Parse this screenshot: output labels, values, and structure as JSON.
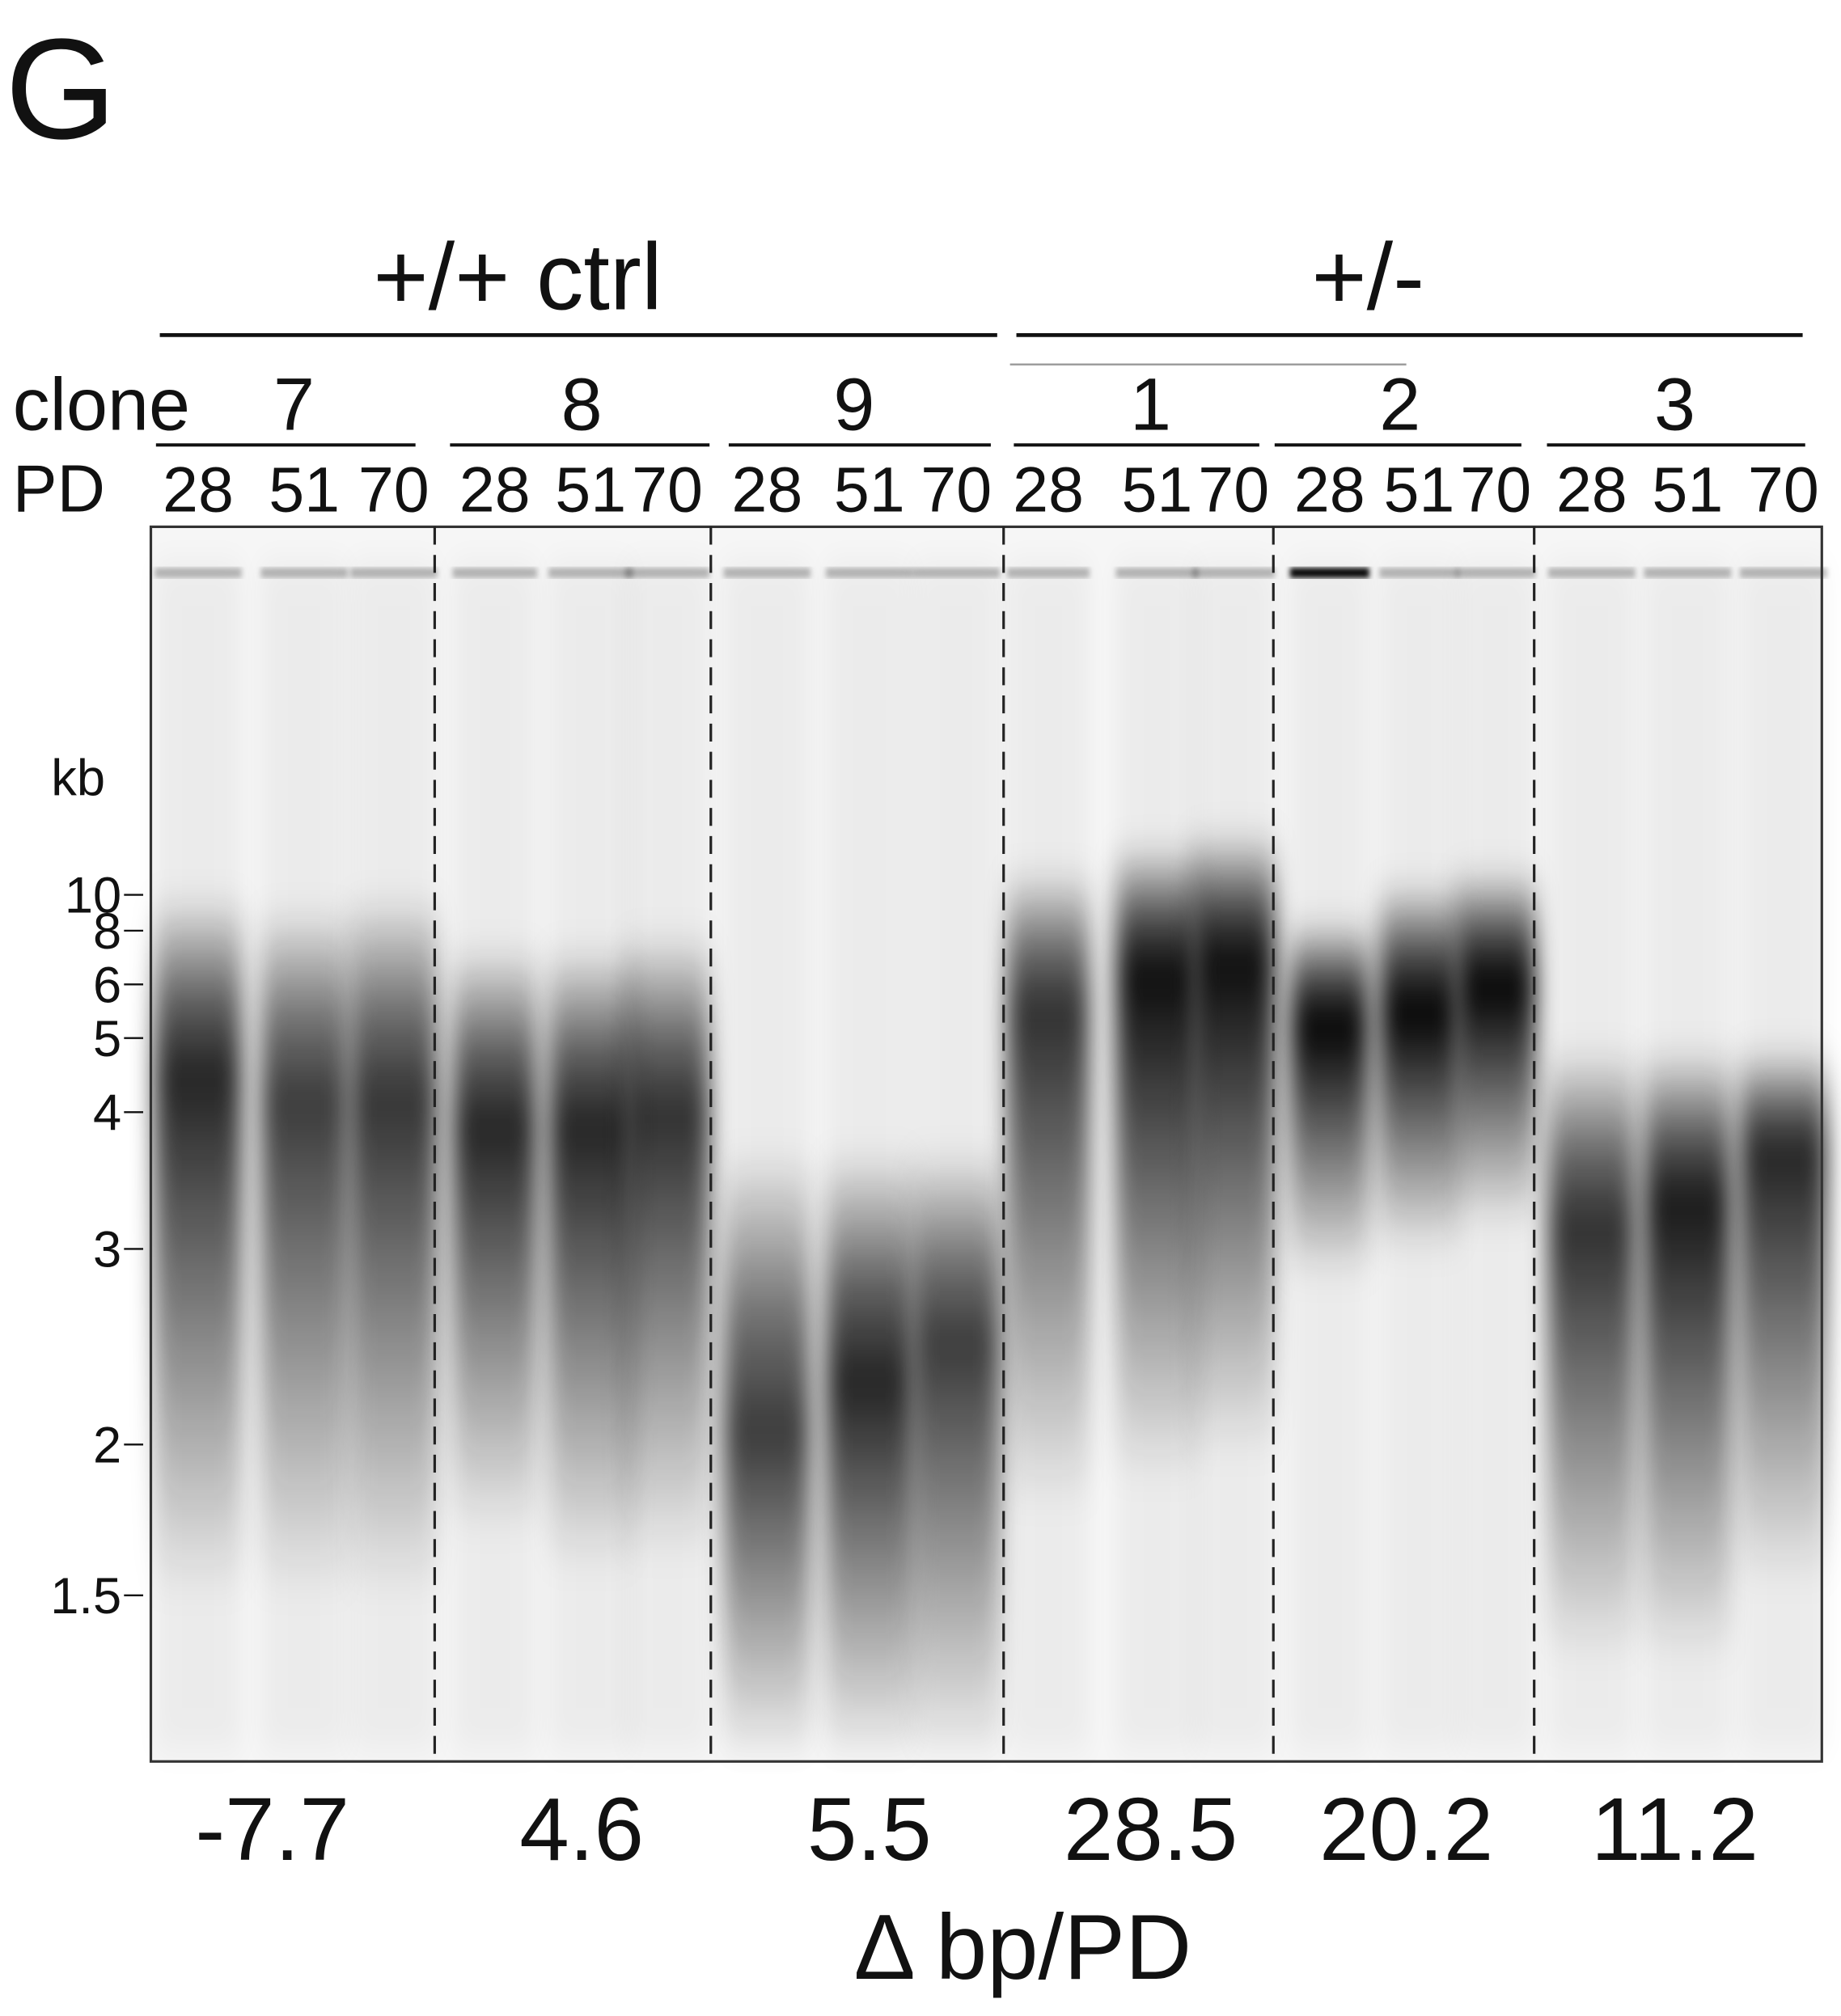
{
  "panel": "G",
  "groups": [
    {
      "label": "+/+ ctrl"
    },
    {
      "label": "+/-"
    }
  ],
  "clone_label": "clone",
  "pd_label": "PD",
  "clones": [
    {
      "name": "7",
      "pd": [
        "28",
        "51",
        "70"
      ],
      "delta": "-7.7"
    },
    {
      "name": "8",
      "pd": [
        "28",
        "51",
        "70"
      ],
      "delta": "4.6"
    },
    {
      "name": "9",
      "pd": [
        "28",
        "51",
        "70"
      ],
      "delta": "5.5"
    },
    {
      "name": "1",
      "pd": [
        "28",
        "51",
        "70"
      ],
      "delta": "28.5"
    },
    {
      "name": "2",
      "pd": [
        "28",
        "51",
        "70"
      ],
      "delta": "20.2"
    },
    {
      "name": "3",
      "pd": [
        "28",
        "51",
        "70"
      ],
      "delta": "11.2"
    }
  ],
  "size_axis": {
    "unit": "kb",
    "markers": [
      "10",
      "8",
      "6",
      "5",
      "4",
      "3",
      "2",
      "1.5"
    ]
  },
  "x_label": "Δ bp/PD"
}
